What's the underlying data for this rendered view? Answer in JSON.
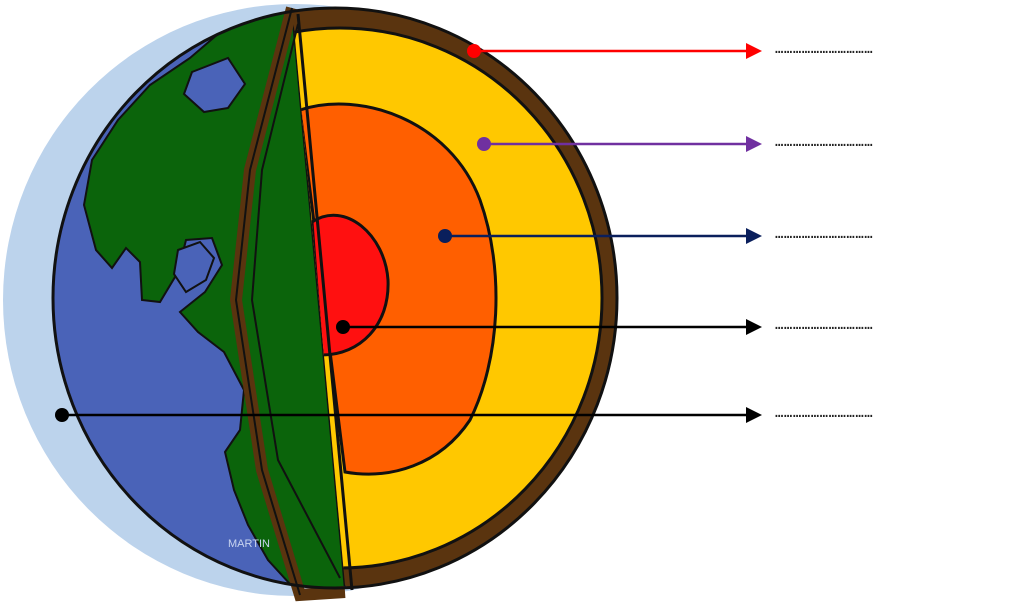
{
  "diagram": {
    "signature": "MARTIN",
    "colors": {
      "atmosphere": "#bcd3ec",
      "ocean": "#4a63b8",
      "land": "#0b640b",
      "crust": "#5a340f",
      "mantle": "#ffc800",
      "outer_core": "#ff5f00",
      "inner_core": "#ff1010",
      "outline": "#111111"
    },
    "pointers": [
      {
        "name": "crust-pointer",
        "color": "#ff0000",
        "blank": "……………………………"
      },
      {
        "name": "mantle-pointer",
        "color": "#7030a0",
        "blank": "……………………………"
      },
      {
        "name": "outer-core-pointer",
        "color": "#0a1f5c",
        "blank": "……………………………"
      },
      {
        "name": "inner-core-pointer",
        "color": "#000000",
        "blank": "……………………………"
      },
      {
        "name": "surface-pointer",
        "color": "#000000",
        "blank": "……………………………"
      }
    ]
  }
}
